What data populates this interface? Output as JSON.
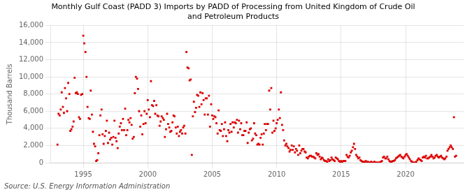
{
  "chart_data": {
    "type": "scatter",
    "title": "Monthly Gulf Coast (PADD 3) Imports by PADD of Processing from United Kingdom of Crude Oil\nand Petroleum Products",
    "y_label": "Thousand Barrels",
    "annotations": [
      "Source: U.S. Energy Information Administration"
    ],
    "color": "#dd0000",
    "marker": "square",
    "grid": true,
    "xlim": [
      1992.5,
      2024.5
    ],
    "xticks": [
      1995,
      2000,
      2005,
      2010,
      2015,
      2020
    ],
    "ylim": [
      0,
      16000
    ],
    "yticks": [
      0,
      {
        "value": 2000,
        "label": "2,000"
      },
      {
        "value": 4000,
        "label": "4,000"
      },
      {
        "value": 6000,
        "label": "6,000"
      },
      {
        "value": 8000,
        "label": "8,000"
      },
      {
        "value": 10000,
        "label": "10,000"
      },
      {
        "value": 12000,
        "label": "12,000"
      },
      {
        "value": 14000,
        "label": "14,000"
      },
      {
        "value": 16000,
        "label": "16,000"
      }
    ],
    "x": [
      1993.0,
      1993.08,
      1993.17,
      1993.25,
      1993.33,
      1993.42,
      1993.5,
      1993.58,
      1993.67,
      1993.75,
      1993.83,
      1993.92,
      1994.0,
      1994.08,
      1994.17,
      1994.25,
      1994.33,
      1994.42,
      1994.5,
      1994.58,
      1994.67,
      1994.75,
      1994.83,
      1994.92,
      1995.0,
      1995.08,
      1995.17,
      1995.25,
      1995.33,
      1995.42,
      1995.5,
      1995.58,
      1995.67,
      1995.75,
      1995.83,
      1995.92,
      1996.0,
      1996.08,
      1996.17,
      1996.25,
      1996.33,
      1996.42,
      1996.5,
      1996.58,
      1996.67,
      1996.75,
      1996.83,
      1996.92,
      1997.0,
      1997.08,
      1997.17,
      1997.25,
      1997.33,
      1997.42,
      1997.5,
      1997.58,
      1997.67,
      1997.75,
      1997.83,
      1997.92,
      1998.0,
      1998.08,
      1998.17,
      1998.25,
      1998.33,
      1998.42,
      1998.5,
      1998.58,
      1998.67,
      1998.75,
      1998.83,
      1998.92,
      1999.0,
      1999.08,
      1999.17,
      1999.25,
      1999.33,
      1999.42,
      1999.5,
      1999.58,
      1999.67,
      1999.75,
      1999.83,
      1999.92,
      2000.0,
      2000.08,
      2000.17,
      2000.25,
      2000.33,
      2000.42,
      2000.5,
      2000.58,
      2000.67,
      2000.75,
      2000.83,
      2000.92,
      2001.0,
      2001.08,
      2001.17,
      2001.25,
      2001.33,
      2001.42,
      2001.5,
      2001.58,
      2001.67,
      2001.75,
      2001.83,
      2001.92,
      2002.0,
      2002.08,
      2002.17,
      2002.25,
      2002.33,
      2002.42,
      2002.5,
      2002.58,
      2002.67,
      2002.75,
      2002.83,
      2002.92,
      2003.0,
      2003.08,
      2003.17,
      2003.25,
      2003.33,
      2003.42,
      2003.5,
      2003.58,
      2003.67,
      2003.75,
      2003.83,
      2003.92,
      2004.0,
      2004.08,
      2004.17,
      2004.25,
      2004.33,
      2004.42,
      2004.5,
      2004.58,
      2004.67,
      2004.75,
      2004.83,
      2004.92,
      2005.0,
      2005.08,
      2005.17,
      2005.25,
      2005.33,
      2005.42,
      2005.5,
      2005.58,
      2005.67,
      2005.75,
      2005.83,
      2005.92,
      2006.0,
      2006.08,
      2006.17,
      2006.25,
      2006.33,
      2006.42,
      2006.5,
      2006.58,
      2006.67,
      2006.75,
      2006.83,
      2006.92,
      2007.0,
      2007.08,
      2007.17,
      2007.25,
      2007.33,
      2007.42,
      2007.5,
      2007.58,
      2007.67,
      2007.75,
      2007.83,
      2007.92,
      2008.0,
      2008.08,
      2008.17,
      2008.25,
      2008.33,
      2008.42,
      2008.5,
      2008.58,
      2008.67,
      2008.75,
      2008.83,
      2008.92,
      2009.0,
      2009.08,
      2009.17,
      2009.25,
      2009.33,
      2009.42,
      2009.5,
      2009.58,
      2009.67,
      2009.75,
      2009.83,
      2009.92,
      2010.0,
      2010.08,
      2010.17,
      2010.25,
      2010.33,
      2010.42,
      2010.5,
      2010.58,
      2010.67,
      2010.75,
      2010.83,
      2010.92,
      2011.0,
      2011.08,
      2011.17,
      2011.25,
      2011.33,
      2011.42,
      2011.5,
      2011.58,
      2011.67,
      2011.75,
      2011.83,
      2011.92,
      2012.0,
      2012.08,
      2012.17,
      2012.25,
      2012.33,
      2012.42,
      2012.5,
      2012.58,
      2012.67,
      2012.75,
      2012.83,
      2012.92,
      2013.0,
      2013.08,
      2013.17,
      2013.25,
      2013.33,
      2013.42,
      2013.5,
      2013.58,
      2013.67,
      2013.75,
      2013.83,
      2013.92,
      2014.0,
      2014.08,
      2014.17,
      2014.25,
      2014.33,
      2014.42,
      2014.5,
      2014.58,
      2014.67,
      2014.75,
      2014.83,
      2014.92,
      2015.0,
      2015.08,
      2015.17,
      2015.25,
      2015.33,
      2015.42,
      2015.5,
      2015.58,
      2015.67,
      2015.75,
      2015.83,
      2015.92,
      2016.0,
      2016.08,
      2016.17,
      2016.25,
      2016.33,
      2016.42,
      2016.5,
      2016.58,
      2016.67,
      2016.75,
      2016.83,
      2016.92,
      2017.0,
      2017.08,
      2017.17,
      2017.25,
      2017.33,
      2017.42,
      2017.5,
      2017.58,
      2017.67,
      2017.75,
      2017.83,
      2017.92,
      2018.0,
      2018.08,
      2018.17,
      2018.25,
      2018.33,
      2018.42,
      2018.5,
      2018.58,
      2018.67,
      2018.75,
      2018.83,
      2018.92,
      2019.0,
      2019.08,
      2019.17,
      2019.25,
      2019.33,
      2019.42,
      2019.5,
      2019.58,
      2019.67,
      2019.75,
      2019.83,
      2019.92,
      2020.0,
      2020.08,
      2020.17,
      2020.25,
      2020.33,
      2020.42,
      2020.5,
      2020.58,
      2020.67,
      2020.75,
      2020.83,
      2020.92,
      2021.0,
      2021.08,
      2021.17,
      2021.25,
      2021.33,
      2021.42,
      2021.5,
      2021.58,
      2021.67,
      2021.75,
      2021.83,
      2021.92,
      2022.0,
      2022.08,
      2022.17,
      2022.25,
      2022.33,
      2022.42,
      2022.5,
      2022.58,
      2022.67,
      2022.75,
      2022.83,
      2022.92,
      2023.0,
      2023.08,
      2023.17,
      2023.25,
      2023.33,
      2023.42,
      2023.5,
      2023.58,
      2023.67,
      2023.75,
      2023.83,
      2023.92
    ],
    "values": [
      2100,
      5700,
      5500,
      6200,
      8200,
      6500,
      5800,
      8700,
      7500,
      6000,
      9300,
      8000,
      3700,
      3900,
      4200,
      4800,
      9900,
      8100,
      8200,
      8000,
      5300,
      5100,
      7900,
      8000,
      14800,
      13900,
      12900,
      10000,
      6500,
      5200,
      5100,
      8400,
      5600,
      3600,
      2200,
      1900,
      200,
      300,
      1100,
      3200,
      5500,
      6200,
      3300,
      2200,
      3100,
      3700,
      4900,
      2300,
      3500,
      2700,
      2900,
      2100,
      3000,
      4900,
      2900,
      2500,
      1700,
      3400,
      4200,
      4600,
      3800,
      5100,
      3800,
      6300,
      3200,
      3800,
      5000,
      4700,
      5200,
      4400,
      2800,
      3000,
      8100,
      10000,
      9800,
      8600,
      6000,
      4200,
      5500,
      3300,
      4500,
      6000,
      4600,
      5700,
      7300,
      6200,
      5300,
      9500,
      6700,
      6600,
      7200,
      5700,
      6700,
      5500,
      5400,
      4300,
      4800,
      5400,
      5200,
      5000,
      3000,
      3900,
      5700,
      4500,
      4100,
      3600,
      3700,
      4700,
      5500,
      5400,
      4100,
      3400,
      4200,
      3100,
      3600,
      3800,
      3400,
      4100,
      4300,
      3400,
      12900,
      11100,
      11000,
      9600,
      9700,
      900,
      5400,
      7100,
      5900,
      6400,
      7900,
      7800,
      6500,
      8200,
      6800,
      8100,
      7300,
      5600,
      7500,
      7500,
      5600,
      7800,
      4200,
      6800,
      5500,
      5100,
      5400,
      5300,
      4600,
      3400,
      6100,
      3800,
      3700,
      4500,
      3100,
      3900,
      4700,
      3100,
      2500,
      3800,
      3500,
      4500,
      3600,
      4700,
      4100,
      4700,
      4600,
      5000,
      3500,
      4900,
      3900,
      4600,
      3200,
      3200,
      3700,
      3700,
      4700,
      2300,
      3500,
      3900,
      4000,
      2600,
      2800,
      4600,
      3400,
      3200,
      2100,
      2200,
      2100,
      2900,
      3300,
      2100,
      3400,
      4500,
      3800,
      4500,
      4500,
      8400,
      6200,
      8700,
      3500,
      4900,
      3700,
      4000,
      4600,
      5000,
      6200,
      5200,
      8200,
      4400,
      3800,
      2600,
      2000,
      2200,
      1900,
      1700,
      1300,
      1500,
      2000,
      1500,
      1900,
      1200,
      1600,
      1400,
      900,
      2000,
      1100,
      1400,
      1600,
      1600,
      1300,
      1200,
      600,
      500,
      700,
      800,
      800,
      700,
      700,
      600,
      500,
      1100,
      900,
      1000,
      700,
      400,
      600,
      500,
      300,
      200,
      200,
      100,
      400,
      200,
      300,
      600,
      400,
      300,
      200,
      600,
      500,
      400,
      200,
      100,
      200,
      100,
      200,
      200,
      200,
      900,
      700,
      600,
      800,
      1200,
      1400,
      1800,
      2200,
      1600,
      900,
      700,
      500,
      600,
      300,
      200,
      100,
      0,
      100,
      200,
      0,
      100,
      0,
      0,
      100,
      0,
      0,
      100,
      0,
      0,
      0,
      0,
      0,
      100,
      200,
      600,
      700,
      500,
      500,
      700,
      400,
      200,
      100,
      100,
      200,
      200,
      300,
      500,
      600,
      700,
      800,
      900,
      700,
      600,
      500,
      700,
      900,
      1000,
      800,
      600,
      400,
      200,
      100,
      0,
      0,
      0,
      100,
      300,
      500,
      400,
      300,
      200,
      600,
      700,
      600,
      800,
      500,
      500,
      600,
      700,
      900,
      700,
      500,
      600,
      800,
      900,
      700,
      600,
      700,
      800,
      600,
      500,
      400,
      500,
      700,
      1400,
      1600,
      1800,
      2000,
      1800,
      1600,
      5300,
      700,
      800
    ]
  }
}
